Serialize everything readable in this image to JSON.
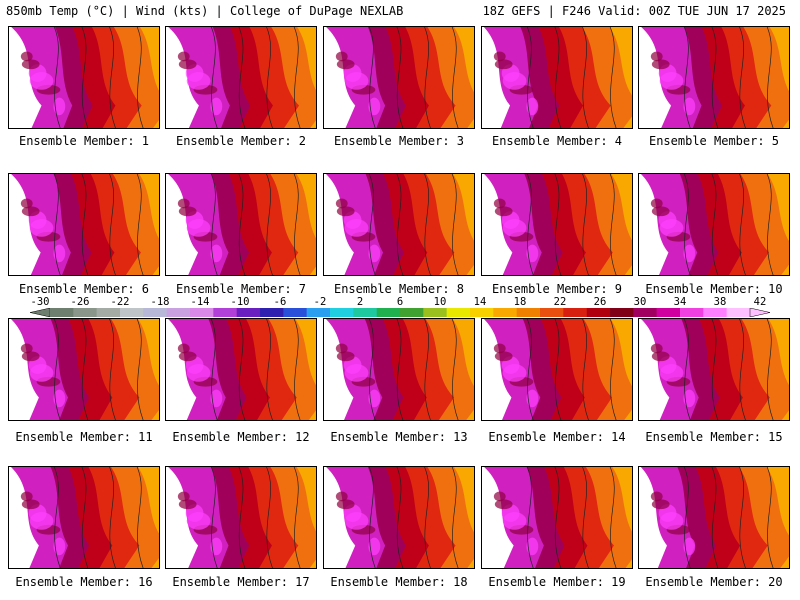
{
  "header": {
    "left_title": "850mb Temp (°C) | Wind (kts) | College of DuPage NEXLAB",
    "right_title": "18Z GEFS | F246 Valid: 00Z TUE JUN 17 2025"
  },
  "members": [
    {
      "label": "Ensemble Member: 1",
      "hot": 0.85
    },
    {
      "label": "Ensemble Member: 2",
      "hot": 0.9
    },
    {
      "label": "Ensemble Member: 3",
      "hot": 0.7
    },
    {
      "label": "Ensemble Member: 4",
      "hot": 0.35
    },
    {
      "label": "Ensemble Member: 5",
      "hot": 0.8
    },
    {
      "label": "Ensemble Member: 6",
      "hot": 0.75
    },
    {
      "label": "Ensemble Member: 7",
      "hot": 0.8
    },
    {
      "label": "Ensemble Member: 8",
      "hot": 0.55
    },
    {
      "label": "Ensemble Member: 9",
      "hot": 0.6
    },
    {
      "label": "Ensemble Member: 10",
      "hot": 0.5
    },
    {
      "label": "Ensemble Member: 11",
      "hot": 0.55
    },
    {
      "label": "Ensemble Member: 12",
      "hot": 0.6
    },
    {
      "label": "Ensemble Member: 13",
      "hot": 0.5
    },
    {
      "label": "Ensemble Member: 14",
      "hot": 0.5
    },
    {
      "label": "Ensemble Member: 15",
      "hot": 0.6
    },
    {
      "label": "Ensemble Member: 16",
      "hot": 0.55
    },
    {
      "label": "Ensemble Member: 17",
      "hot": 0.8
    },
    {
      "label": "Ensemble Member: 18",
      "hot": 0.7
    },
    {
      "label": "Ensemble Member: 19",
      "hot": 0.75
    },
    {
      "label": "Ensemble Member: 20",
      "hot": 0.35
    }
  ],
  "colorbar": {
    "labels": [
      "-30",
      "-26",
      "-22",
      "-18",
      "-14",
      "-10",
      "-6",
      "-2",
      "2",
      "6",
      "10",
      "14",
      "18",
      "22",
      "26",
      "30",
      "34",
      "38",
      "42"
    ],
    "colors": [
      "#6f7f6f",
      "#8a968a",
      "#a4aaa4",
      "#bfc4c8",
      "#b7b7d8",
      "#c9a0e0",
      "#d98ae8",
      "#b040d8",
      "#6a1fc0",
      "#3020b0",
      "#2a4fd8",
      "#2a9ff0",
      "#20d0e0",
      "#20c8a0",
      "#20b050",
      "#40a030",
      "#9ac020",
      "#e8e800",
      "#f8d000",
      "#f8a800",
      "#f08000",
      "#e85010",
      "#d82010",
      "#b00010",
      "#800018",
      "#a00060",
      "#d000a0",
      "#f040e0",
      "#ff80ff",
      "#ffc0ff"
    ]
  }
}
